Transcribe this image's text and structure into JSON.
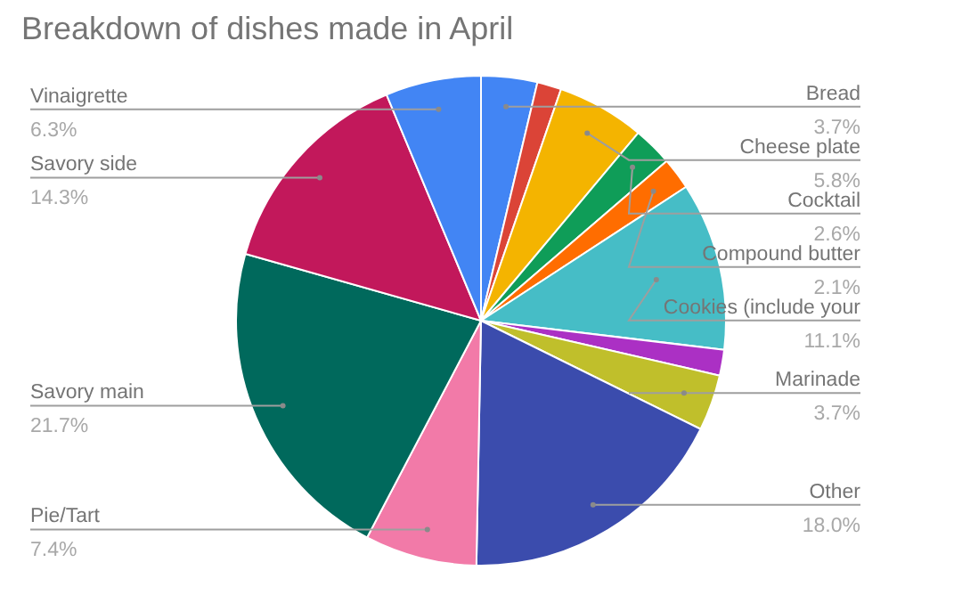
{
  "chart_data": {
    "type": "pie",
    "title": "Breakdown of dishes made in April",
    "categories": [
      "Bread",
      null,
      "Cheese plate",
      "Cocktail",
      "Compound butter",
      "Cookies (include your",
      null,
      "Marinade",
      "Other",
      "Pie/Tart",
      "Savory main",
      "Savory side",
      "Vinaigrette"
    ],
    "values": [
      3.7,
      1.6,
      5.8,
      2.6,
      2.1,
      11.1,
      1.7,
      3.7,
      18.0,
      7.4,
      21.7,
      14.3,
      6.3
    ],
    "value_labels": [
      "3.7%",
      null,
      "5.8%",
      "2.6%",
      "2.1%",
      "11.1%",
      null,
      "3.7%",
      "18.0%",
      "7.4%",
      "21.7%",
      "14.3%",
      "6.3%"
    ],
    "colors": [
      "#4285f4",
      "#db4437",
      "#f4b400",
      "#0f9d58",
      "#ff6d00",
      "#46bdc6",
      "#ab30c4",
      "#c0bf2b",
      "#3b4cad",
      "#f27aa8",
      "#00695c",
      "#c2185b",
      "#4285f4"
    ],
    "legend": false
  }
}
